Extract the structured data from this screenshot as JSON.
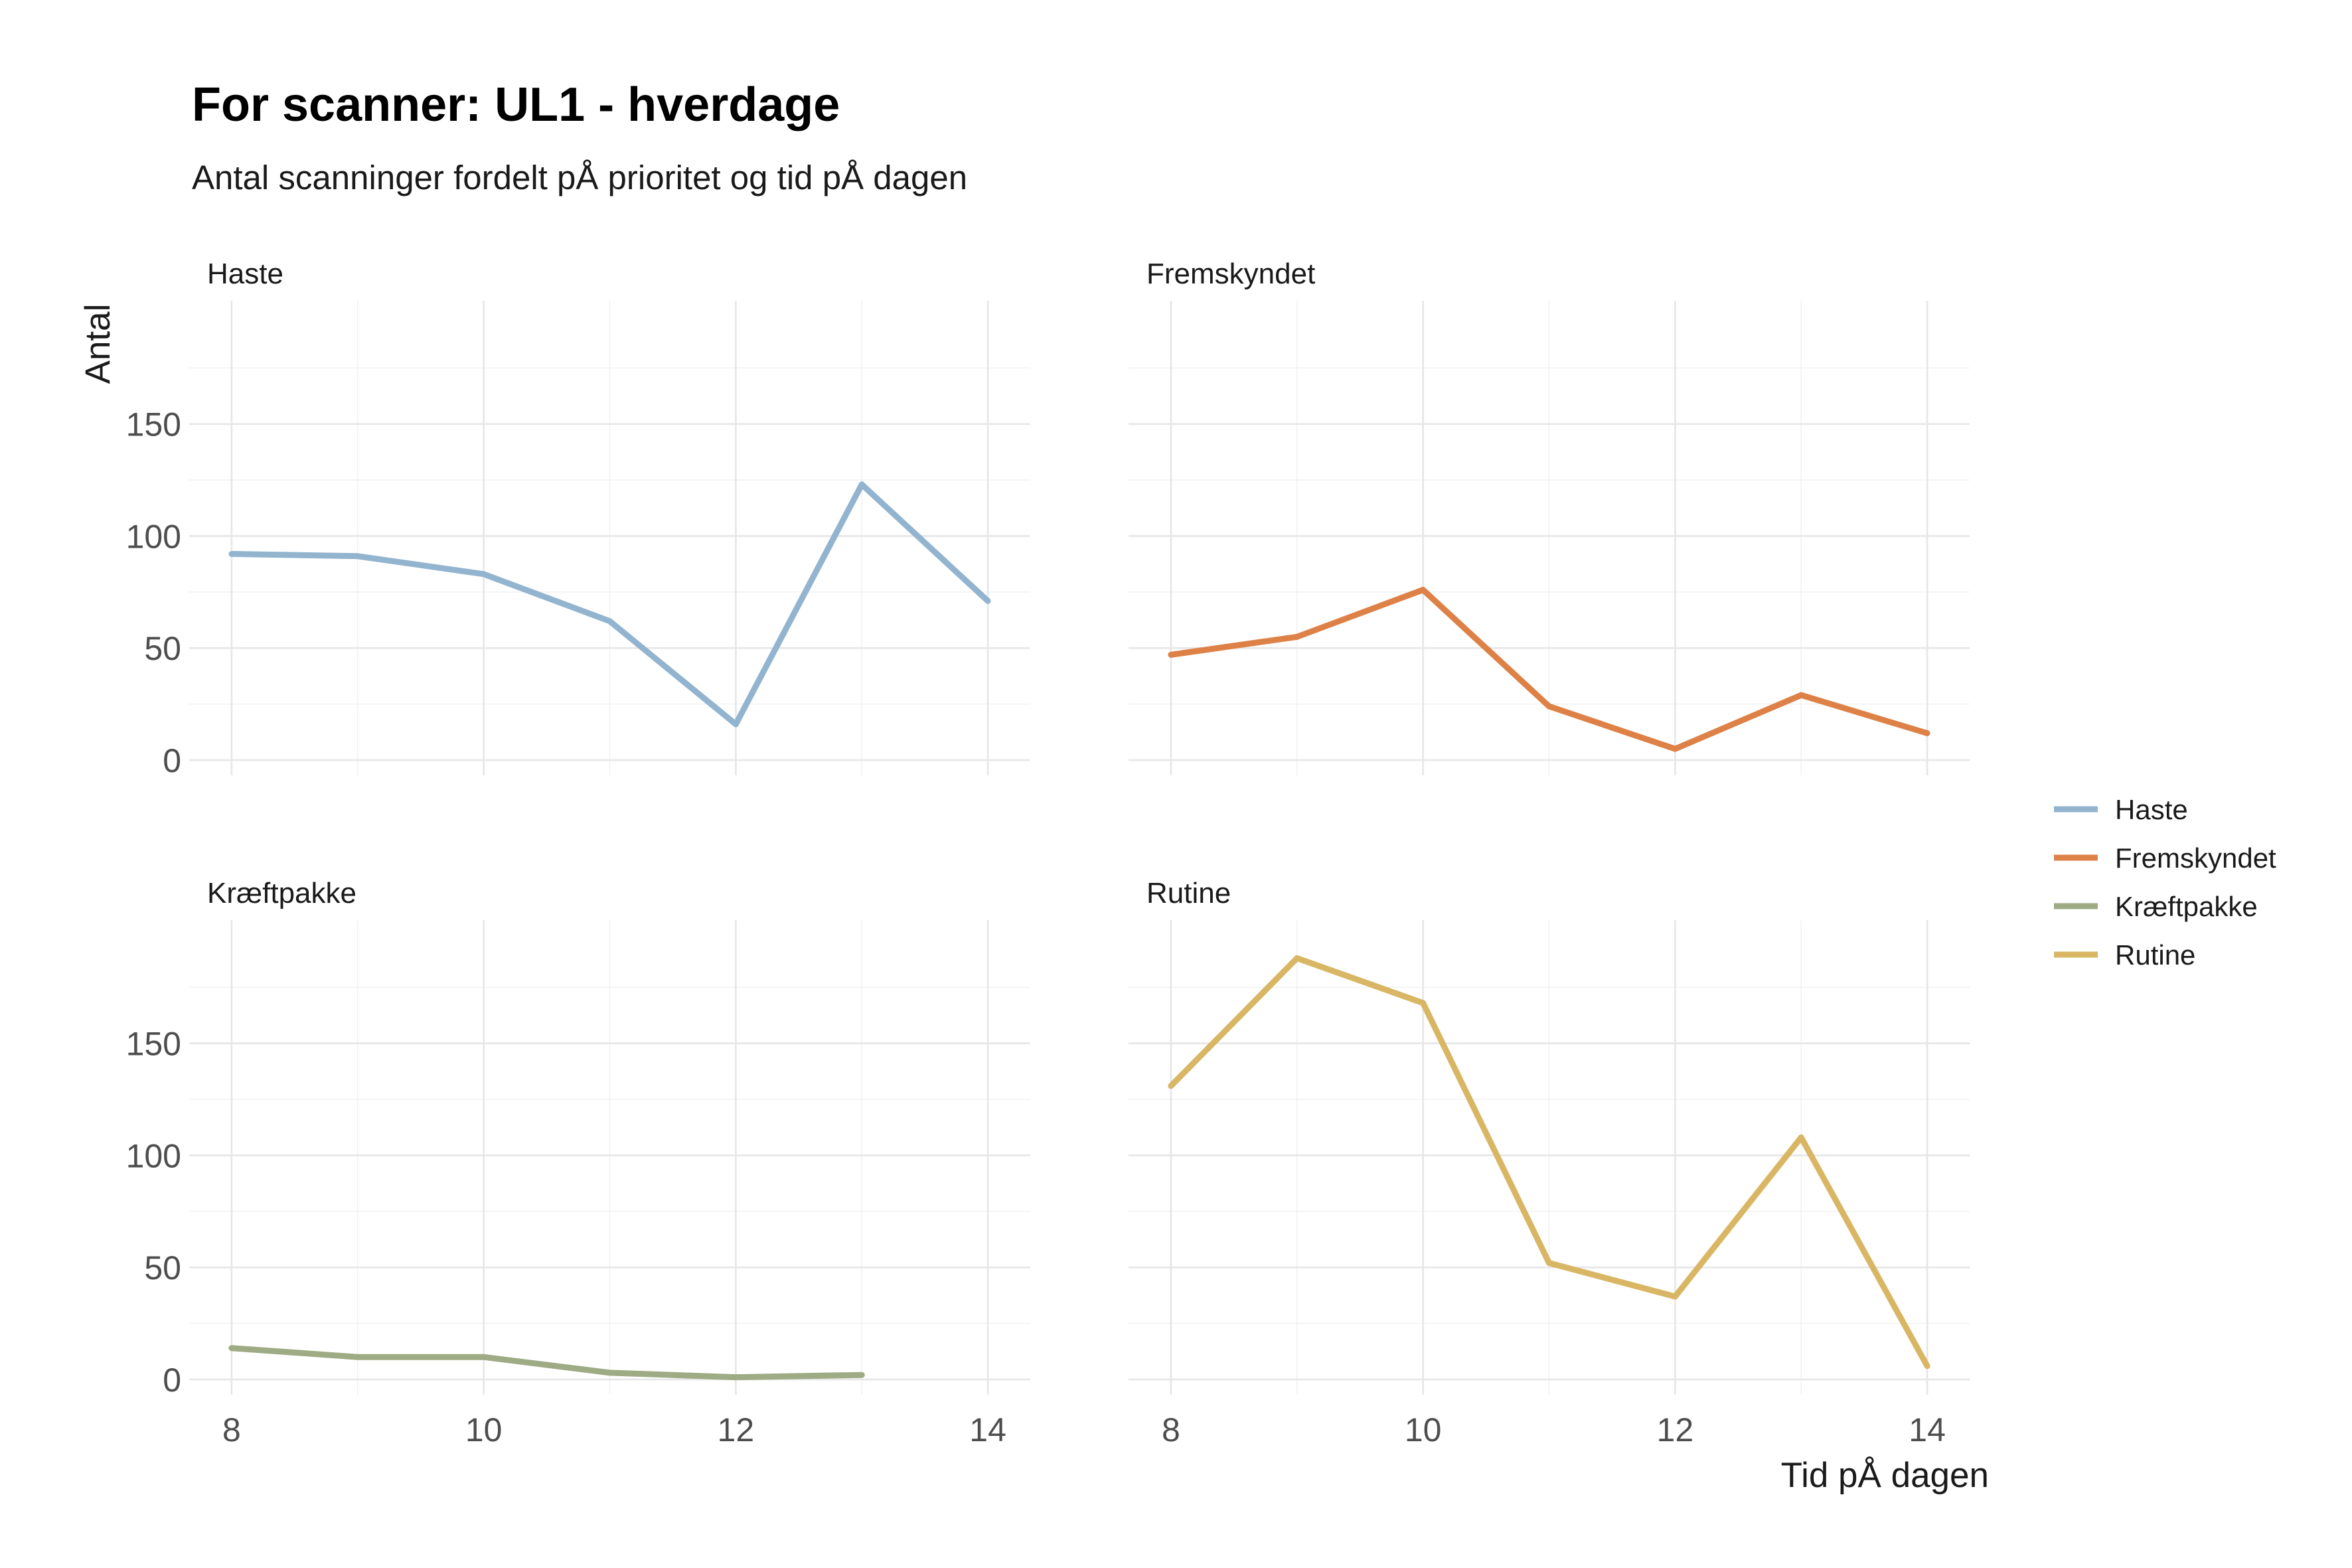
{
  "chart_data": {
    "type": "line",
    "title": "For scanner: UL1 - hverdage",
    "subtitle": "Antal scanninger fordelt pÅ prioritet og tid pÅ dagen",
    "xlabel": "Tid pÅ dagen",
    "ylabel": "Antal",
    "xlim": [
      7.99,
      14.01
    ],
    "ylim": [
      0,
      197
    ],
    "x_ticks": [
      8,
      10,
      12,
      14
    ],
    "y_ticks": [
      0,
      50,
      100,
      150
    ],
    "x_tick_labels": [
      "8",
      "10",
      "12",
      "14"
    ],
    "y_tick_labels": [
      "0",
      "50",
      "100",
      "150"
    ],
    "grid": true,
    "legend_position": "right",
    "facets": [
      {
        "name": "Haste",
        "color": "#92b4cf",
        "x": [
          8,
          9,
          10,
          11,
          12,
          13,
          14
        ],
        "y": [
          92,
          91,
          83,
          62,
          16,
          123,
          71
        ]
      },
      {
        "name": "Fremskyndet",
        "color": "#dd8147",
        "x": [
          8,
          9,
          10,
          11,
          12,
          13,
          14
        ],
        "y": [
          47,
          55,
          76,
          24,
          5,
          29,
          12
        ]
      },
      {
        "name": "Kræftpakke",
        "color": "#9eab84",
        "x": [
          8,
          9,
          10,
          11,
          12,
          13
        ],
        "y": [
          14,
          10,
          10,
          3,
          1,
          2
        ]
      },
      {
        "name": "Rutine",
        "color": "#d8b664",
        "x": [
          8,
          9,
          10,
          11,
          12,
          13,
          14
        ],
        "y": [
          131,
          188,
          168,
          52,
          37,
          108,
          6
        ]
      }
    ],
    "legend": [
      {
        "label": "Haste",
        "color": "#92b4cf"
      },
      {
        "label": "Fremskyndet",
        "color": "#dd8147"
      },
      {
        "label": "Kræftpakke",
        "color": "#9eab84"
      },
      {
        "label": "Rutine",
        "color": "#d8b664"
      }
    ]
  }
}
